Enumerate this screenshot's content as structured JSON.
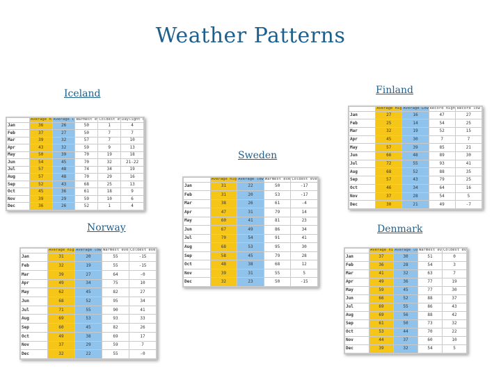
{
  "title": "Weather Patterns",
  "colors": {
    "title": "#1f5f8b",
    "high_col": "#f5c518",
    "low_col": "#8fc3ec"
  },
  "iceland": {
    "label": "Iceland",
    "headers": [
      "",
      "Average high",
      "Average low",
      "Warmest ever",
      "Coldest ever",
      "Daylight hrs"
    ],
    "rows": [
      [
        "Jan",
        "36",
        "26",
        "50",
        "1",
        "4"
      ],
      [
        "Feb",
        "37",
        "27",
        "50",
        "7",
        "7"
      ],
      [
        "Mar",
        "39",
        "32",
        "57",
        "7",
        "10"
      ],
      [
        "Apr",
        "43",
        "32",
        "59",
        "9",
        "13"
      ],
      [
        "May",
        "50",
        "39",
        "70",
        "19",
        "18"
      ],
      [
        "Jun",
        "54",
        "45",
        "70",
        "32",
        "21-22"
      ],
      [
        "Jul",
        "57",
        "48",
        "74",
        "34",
        "19"
      ],
      [
        "Aug",
        "57",
        "48",
        "70",
        "29",
        "16"
      ],
      [
        "Sep",
        "52",
        "43",
        "68",
        "25",
        "13"
      ],
      [
        "Oct",
        "45",
        "36",
        "61",
        "18",
        "9"
      ],
      [
        "Nov",
        "39",
        "29",
        "59",
        "10",
        "6"
      ],
      [
        "Dec",
        "36",
        "26",
        "52",
        "1",
        "4"
      ]
    ]
  },
  "finland": {
    "label": "Finland",
    "headers": [
      "",
      "Average High",
      "Average Low",
      "Record high",
      "Record low"
    ],
    "rows": [
      [
        "Jan",
        "27",
        "16",
        "47",
        "27"
      ],
      [
        "Feb",
        "25",
        "14",
        "54",
        "25"
      ],
      [
        "Mar",
        "32",
        "19",
        "52",
        "15"
      ],
      [
        "Apr",
        "45",
        "30",
        "7",
        "7"
      ],
      [
        "May",
        "57",
        "39",
        "85",
        "21"
      ],
      [
        "Jun",
        "66",
        "48",
        "89",
        "30"
      ],
      [
        "Jul",
        "72",
        "55",
        "93",
        "41"
      ],
      [
        "Aug",
        "68",
        "52",
        "88",
        "35"
      ],
      [
        "Sep",
        "57",
        "43",
        "79",
        "25"
      ],
      [
        "Oct",
        "46",
        "34",
        "64",
        "16"
      ],
      [
        "Nov",
        "37",
        "28",
        "54",
        "5"
      ],
      [
        "Dec",
        "30",
        "21",
        "49",
        "-7"
      ]
    ]
  },
  "sweden": {
    "label": "Sweden",
    "headers": [
      "",
      "Average high",
      "Average low",
      "Warmest ever",
      "Coldest ever"
    ],
    "rows": [
      [
        "Jan",
        "31",
        "22",
        "50",
        "-17"
      ],
      [
        "Feb",
        "31",
        "20",
        "53",
        "-17"
      ],
      [
        "Mar",
        "38",
        "26",
        "61",
        "-4"
      ],
      [
        "Apr",
        "47",
        "31",
        "79",
        "14"
      ],
      [
        "May",
        "60",
        "41",
        "81",
        "23"
      ],
      [
        "Jun",
        "67",
        "49",
        "86",
        "34"
      ],
      [
        "Jul",
        "70",
        "54",
        "91",
        "41"
      ],
      [
        "Aug",
        "68",
        "53",
        "95",
        "30"
      ],
      [
        "Sep",
        "58",
        "45",
        "79",
        "28"
      ],
      [
        "Oct",
        "48",
        "38",
        "68",
        "12"
      ],
      [
        "Nov",
        "39",
        "31",
        "55",
        "5"
      ],
      [
        "Dec",
        "32",
        "23",
        "50",
        "-15"
      ]
    ]
  },
  "norway": {
    "label": "Norway",
    "headers": [
      "",
      "Average high",
      "Average low",
      "Warmest ever",
      "Coldest ever"
    ],
    "rows": [
      [
        "Jan",
        "31",
        "20",
        "55",
        "-15"
      ],
      [
        "Feb",
        "32",
        "19",
        "55",
        "-15"
      ],
      [
        "Mar",
        "39",
        "27",
        "64",
        "-0"
      ],
      [
        "Apr",
        "49",
        "34",
        "75",
        "10"
      ],
      [
        "May",
        "62",
        "45",
        "82",
        "27"
      ],
      [
        "Jun",
        "68",
        "52",
        "95",
        "34"
      ],
      [
        "Jul",
        "71",
        "55",
        "90",
        "41"
      ],
      [
        "Aug",
        "69",
        "53",
        "93",
        "33"
      ],
      [
        "Sep",
        "60",
        "45",
        "82",
        "26"
      ],
      [
        "Oct",
        "49",
        "38",
        "69",
        "17"
      ],
      [
        "Nov",
        "37",
        "29",
        "59",
        "7"
      ],
      [
        "Dec",
        "32",
        "22",
        "55",
        "-0"
      ]
    ]
  },
  "denmark": {
    "label": "Denmark",
    "headers": [
      "",
      "Average high",
      "Average low",
      "Warmest ever",
      "Coldest ever"
    ],
    "rows": [
      [
        "Jan",
        "37",
        "30",
        "51",
        "0"
      ],
      [
        "Feb",
        "36",
        "28",
        "54",
        "3"
      ],
      [
        "Mar",
        "41",
        "32",
        "63",
        "7"
      ],
      [
        "Apr",
        "49",
        "36",
        "77",
        "19"
      ],
      [
        "May",
        "59",
        "45",
        "77",
        "30"
      ],
      [
        "Jun",
        "66",
        "52",
        "88",
        "37"
      ],
      [
        "Jul",
        "69",
        "55",
        "86",
        "43"
      ],
      [
        "Aug",
        "69",
        "56",
        "88",
        "42"
      ],
      [
        "Sep",
        "61",
        "50",
        "73",
        "32"
      ],
      [
        "Oct",
        "53",
        "44",
        "70",
        "22"
      ],
      [
        "Nov",
        "44",
        "37",
        "60",
        "10"
      ],
      [
        "Dec",
        "39",
        "32",
        "54",
        "5"
      ]
    ]
  }
}
